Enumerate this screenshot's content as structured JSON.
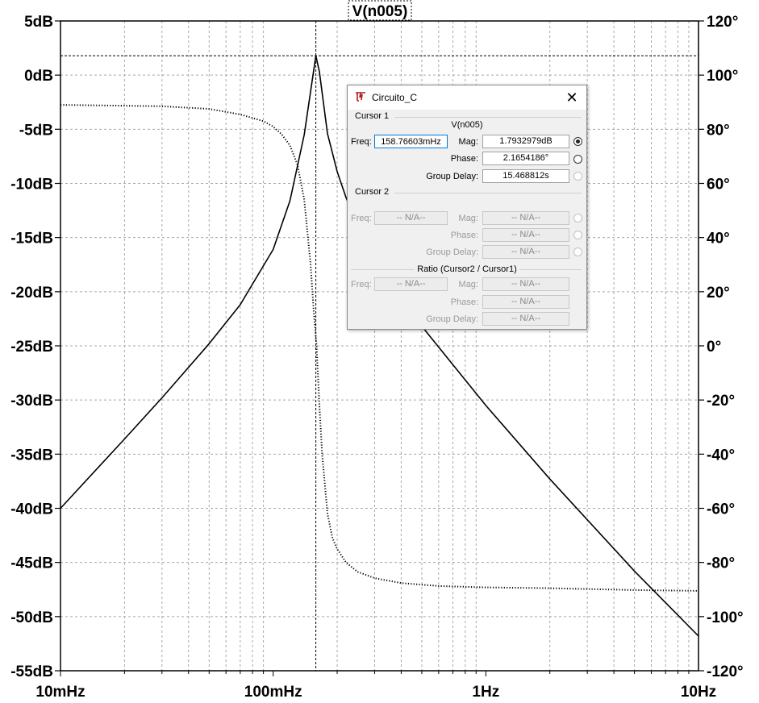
{
  "chart_data": {
    "type": "line",
    "title": "V(n005)",
    "x_axis": {
      "scale": "log",
      "range_hz": [
        0.01,
        10
      ],
      "tick_labels": [
        "10mHz",
        "100mHz",
        "1Hz",
        "10Hz"
      ],
      "tick_values": [
        0.01,
        0.1,
        1,
        10
      ]
    },
    "y_left": {
      "unit": "dB",
      "range": [
        -55,
        5
      ],
      "tick_labels": [
        "5dB",
        "0dB",
        "-5dB",
        "-10dB",
        "-15dB",
        "-20dB",
        "-25dB",
        "-30dB",
        "-35dB",
        "-40dB",
        "-45dB",
        "-50dB",
        "-55dB"
      ],
      "tick_values": [
        5,
        0,
        -5,
        -10,
        -15,
        -20,
        -25,
        -30,
        -35,
        -40,
        -45,
        -50,
        -55
      ]
    },
    "y_right": {
      "unit": "°",
      "range": [
        -120,
        120
      ],
      "tick_labels": [
        "120°",
        "100°",
        "80°",
        "60°",
        "40°",
        "20°",
        "0°",
        "-20°",
        "-40°",
        "-60°",
        "-80°",
        "-100°",
        "-120°"
      ],
      "tick_values": [
        120,
        100,
        80,
        60,
        40,
        20,
        0,
        -20,
        -40,
        -60,
        -80,
        -100,
        -120
      ]
    },
    "grid": true,
    "series": [
      {
        "style": "solid",
        "axis": "left",
        "x": [
          0.01,
          0.02,
          0.03,
          0.05,
          0.07,
          0.1,
          0.12,
          0.14,
          0.15,
          0.158766,
          0.165,
          0.18,
          0.2,
          0.22,
          0.25,
          0.3,
          0.5,
          1,
          2,
          5,
          10
        ],
        "y": [
          -40,
          -33.6,
          -29.8,
          -24.8,
          -21.2,
          -16.1,
          -11.6,
          -5.5,
          -1.5,
          1.79,
          0.3,
          -5.4,
          -8.9,
          -11.3,
          -13.8,
          -16.6,
          -23.2,
          -30.5,
          -37.3,
          -45.8,
          -51.8
        ]
      },
      {
        "style": "dotted",
        "axis": "right",
        "x": [
          0.01,
          0.03,
          0.05,
          0.07,
          0.09,
          0.1,
          0.11,
          0.12,
          0.13,
          0.14,
          0.15,
          0.155,
          0.16,
          0.165,
          0.17,
          0.18,
          0.19,
          0.2,
          0.22,
          0.25,
          0.3,
          0.4,
          0.6,
          1,
          2,
          5,
          10
        ],
        "y": [
          89,
          88.5,
          87.5,
          85.5,
          83,
          81,
          78,
          74,
          67,
          54,
          30,
          13,
          0,
          -22,
          -40,
          -62,
          -71,
          -75,
          -80,
          -83.5,
          -85.8,
          -87.6,
          -88.7,
          -89.2,
          -89.5,
          -90.2,
          -90.5
        ]
      }
    ],
    "cursor": {
      "x": 0.158766,
      "y_db": 1.79
    }
  },
  "dialog": {
    "title": "Circuito_C",
    "close_glyph": "✕",
    "cursor1": {
      "heading": "Cursor 1",
      "trace": "V(n005)",
      "freq_label": "Freq:",
      "freq_value": "158.76603mHz",
      "mag_label": "Mag:",
      "mag_value": "1.7932979dB",
      "phase_label": "Phase:",
      "phase_value": "2.1654186°",
      "gd_label": "Group Delay:",
      "gd_value": "15.468812s"
    },
    "cursor2": {
      "heading": "Cursor 2",
      "freq_label": "Freq:",
      "freq_value": "-- N/A--",
      "mag_label": "Mag:",
      "mag_value": "-- N/A--",
      "phase_label": "Phase:",
      "phase_value": "-- N/A--",
      "gd_label": "Group Delay:",
      "gd_value": "-- N/A--"
    },
    "ratio": {
      "heading": "Ratio (Cursor2 / Cursor1)",
      "freq_label": "Freq:",
      "freq_value": "-- N/A--",
      "mag_label": "Mag:",
      "mag_value": "-- N/A--",
      "phase_label": "Phase:",
      "phase_value": "-- N/A--",
      "gd_label": "Group Delay:",
      "gd_value": "-- N/A--"
    }
  }
}
